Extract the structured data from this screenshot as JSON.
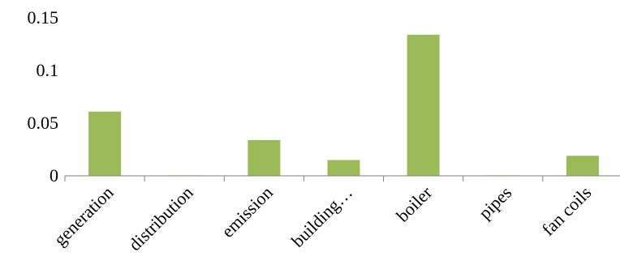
{
  "chart_data": {
    "type": "bar",
    "categories": [
      "generation",
      "distribution",
      "emission",
      "building…",
      "boiler",
      "pipes",
      "fan coils"
    ],
    "values": [
      0.061,
      0.0005,
      0.034,
      0.015,
      0.134,
      0.0005,
      0.019
    ],
    "ylim": [
      0,
      0.15
    ],
    "yticks": [
      0,
      0.05,
      0.1,
      0.15
    ],
    "ytick_labels": [
      "0",
      "0.05",
      "0.1",
      "0.15"
    ],
    "title": "",
    "xlabel": "",
    "ylabel": "",
    "grid": false,
    "legend": "none",
    "colors": {
      "bar": "#9bbb59",
      "axis": "#7f7f7f",
      "text": "#000000"
    }
  }
}
